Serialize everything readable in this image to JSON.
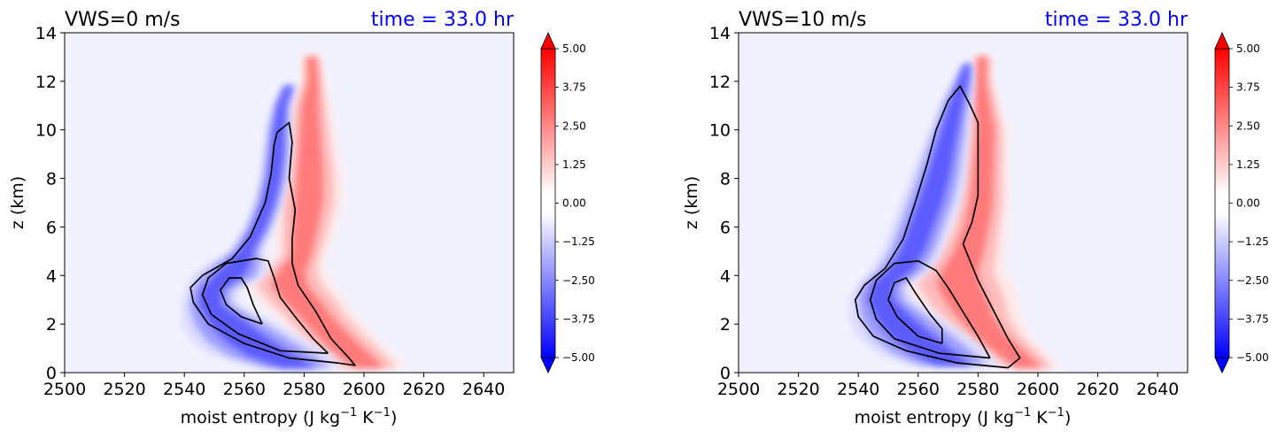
{
  "chart_data": [
    {
      "type": "heatmap",
      "title": "VWS=0 m/s",
      "time_label": "time = 33.0 hr",
      "xlabel": "moist entropy (J kg",
      "xlabel_sup1": "−1",
      "xlabel_mid": " K",
      "xlabel_sup2": "−1",
      "xlabel_end": ")",
      "ylabel": "z (km)",
      "xlim": [
        2500,
        2650
      ],
      "ylim": [
        0,
        14
      ],
      "xticks": [
        "2500",
        "2520",
        "2540",
        "2560",
        "2580",
        "2600",
        "2620",
        "2640"
      ],
      "yticks": [
        "0",
        "2",
        "4",
        "6",
        "8",
        "10",
        "12",
        "14"
      ],
      "colorbar": {
        "range": [
          -5.0,
          5.0
        ],
        "ticks": [
          "5.00",
          "3.75",
          "2.50",
          "1.25",
          "0.00",
          "−1.25",
          "−2.50",
          "−3.75",
          "−5.00"
        ],
        "cmap": "bwr"
      },
      "blue_band": [
        {
          "z": 0.2,
          "l": 2567,
          "r": 2590
        },
        {
          "z": 0.7,
          "l": 2553,
          "r": 2585
        },
        {
          "z": 1.3,
          "l": 2546,
          "r": 2577
        },
        {
          "z": 2.0,
          "l": 2542,
          "r": 2568
        },
        {
          "z": 2.8,
          "l": 2541,
          "r": 2556
        },
        {
          "z": 3.4,
          "l": 2542,
          "r": 2556
        },
        {
          "z": 4.0,
          "l": 2545,
          "r": 2565
        },
        {
          "z": 4.5,
          "l": 2550,
          "r": 2566
        },
        {
          "z": 5.0,
          "l": 2556,
          "r": 2565
        },
        {
          "z": 6.0,
          "l": 2561,
          "r": 2569
        },
        {
          "z": 7.0,
          "l": 2564,
          "r": 2572
        },
        {
          "z": 8.0,
          "l": 2566,
          "r": 2574
        },
        {
          "z": 9.0,
          "l": 2567,
          "r": 2575
        },
        {
          "z": 10.0,
          "l": 2568,
          "r": 2575
        },
        {
          "z": 11.0,
          "l": 2570,
          "r": 2575
        },
        {
          "z": 11.8,
          "l": 2573,
          "r": 2577
        }
      ],
      "red_band": [
        {
          "z": 0.2,
          "l": 2593,
          "r": 2611
        },
        {
          "z": 0.8,
          "l": 2586,
          "r": 2606
        },
        {
          "z": 1.5,
          "l": 2580,
          "r": 2600
        },
        {
          "z": 2.3,
          "l": 2574,
          "r": 2594
        },
        {
          "z": 3.0,
          "l": 2568,
          "r": 2590
        },
        {
          "z": 3.6,
          "l": 2564,
          "r": 2586
        },
        {
          "z": 4.2,
          "l": 2568,
          "r": 2584
        },
        {
          "z": 4.8,
          "l": 2573,
          "r": 2585
        },
        {
          "z": 6.0,
          "l": 2573,
          "r": 2588
        },
        {
          "z": 7.0,
          "l": 2573,
          "r": 2590
        },
        {
          "z": 8.0,
          "l": 2574,
          "r": 2590
        },
        {
          "z": 9.0,
          "l": 2575,
          "r": 2589
        },
        {
          "z": 10.0,
          "l": 2576,
          "r": 2588
        },
        {
          "z": 11.0,
          "l": 2577,
          "r": 2587
        },
        {
          "z": 12.0,
          "l": 2580,
          "r": 2586
        },
        {
          "z": 13.0,
          "l": 2580,
          "r": 2585
        }
      ],
      "contours": [
        [
          [
            2591,
            0.4
          ],
          [
            2575,
            0.6
          ],
          [
            2560,
            1.2
          ],
          [
            2548,
            2.0
          ],
          [
            2543,
            2.9
          ],
          [
            2542,
            3.5
          ],
          [
            2546,
            4.0
          ],
          [
            2556,
            4.7
          ],
          [
            2562,
            5.6
          ],
          [
            2567,
            7.0
          ],
          [
            2569,
            8.2
          ],
          [
            2570,
            9.4
          ],
          [
            2571,
            9.9
          ],
          [
            2575,
            10.3
          ],
          [
            2576,
            9.5
          ],
          [
            2575,
            8.0
          ],
          [
            2577,
            6.7
          ],
          [
            2576,
            5.5
          ],
          [
            2576,
            4.5
          ],
          [
            2578,
            3.6
          ],
          [
            2584,
            2.5
          ],
          [
            2589,
            1.4
          ],
          [
            2595,
            0.6
          ],
          [
            2597,
            0.3
          ],
          [
            2591,
            0.4
          ]
        ],
        [
          [
            2588,
            0.8
          ],
          [
            2572,
            0.9
          ],
          [
            2558,
            1.6
          ],
          [
            2549,
            2.4
          ],
          [
            2546,
            3.2
          ],
          [
            2548,
            3.9
          ],
          [
            2554,
            4.5
          ],
          [
            2564,
            4.7
          ],
          [
            2568,
            4.6
          ],
          [
            2570,
            3.9
          ],
          [
            2572,
            3.1
          ],
          [
            2577,
            2.3
          ],
          [
            2583,
            1.4
          ],
          [
            2588,
            0.8
          ]
        ],
        [
          [
            2566,
            2.0
          ],
          [
            2559,
            2.3
          ],
          [
            2554,
            2.8
          ],
          [
            2552,
            3.4
          ],
          [
            2555,
            3.9
          ],
          [
            2559,
            3.9
          ],
          [
            2561,
            3.5
          ],
          [
            2563,
            2.8
          ],
          [
            2566,
            2.0
          ]
        ]
      ]
    },
    {
      "type": "heatmap",
      "title": "VWS=10 m/s",
      "time_label": "time = 33.0 hr",
      "xlabel": "moist entropy (J kg",
      "xlabel_sup1": "−1",
      "xlabel_mid": " K",
      "xlabel_sup2": "−1",
      "xlabel_end": ")",
      "ylabel": "z (km)",
      "xlim": [
        2500,
        2650
      ],
      "ylim": [
        0,
        14
      ],
      "xticks": [
        "2500",
        "2520",
        "2540",
        "2560",
        "2580",
        "2600",
        "2620",
        "2640"
      ],
      "yticks": [
        "0",
        "2",
        "4",
        "6",
        "8",
        "10",
        "12",
        "14"
      ],
      "colorbar": {
        "range": [
          -5.0,
          5.0
        ],
        "ticks": [
          "5.00",
          "3.75",
          "2.50",
          "1.25",
          "0.00",
          "−1.25",
          "−2.50",
          "−3.75",
          "−5.00"
        ],
        "cmap": "bwr"
      },
      "blue_band": [
        {
          "z": 0.3,
          "l": 2560,
          "r": 2584
        },
        {
          "z": 0.8,
          "l": 2550,
          "r": 2580
        },
        {
          "z": 1.5,
          "l": 2543,
          "r": 2573
        },
        {
          "z": 2.2,
          "l": 2540,
          "r": 2565
        },
        {
          "z": 3.0,
          "l": 2539,
          "r": 2556
        },
        {
          "z": 3.6,
          "l": 2541,
          "r": 2555
        },
        {
          "z": 4.2,
          "l": 2546,
          "r": 2562
        },
        {
          "z": 5.0,
          "l": 2550,
          "r": 2566
        },
        {
          "z": 6.0,
          "l": 2553,
          "r": 2569
        },
        {
          "z": 7.0,
          "l": 2556,
          "r": 2572
        },
        {
          "z": 8.0,
          "l": 2559,
          "r": 2574
        },
        {
          "z": 9.0,
          "l": 2562,
          "r": 2575
        },
        {
          "z": 10.0,
          "l": 2565,
          "r": 2576
        },
        {
          "z": 11.0,
          "l": 2568,
          "r": 2577
        },
        {
          "z": 12.0,
          "l": 2572,
          "r": 2578
        },
        {
          "z": 12.7,
          "l": 2575,
          "r": 2578
        }
      ],
      "red_band": [
        {
          "z": 0.2,
          "l": 2590,
          "r": 2605
        },
        {
          "z": 0.8,
          "l": 2582,
          "r": 2600
        },
        {
          "z": 1.5,
          "l": 2575,
          "r": 2594
        },
        {
          "z": 2.3,
          "l": 2568,
          "r": 2590
        },
        {
          "z": 3.0,
          "l": 2563,
          "r": 2589
        },
        {
          "z": 3.6,
          "l": 2560,
          "r": 2587
        },
        {
          "z": 4.2,
          "l": 2563,
          "r": 2585
        },
        {
          "z": 5.0,
          "l": 2568,
          "r": 2586
        },
        {
          "z": 6.0,
          "l": 2572,
          "r": 2587
        },
        {
          "z": 7.0,
          "l": 2574,
          "r": 2588
        },
        {
          "z": 8.0,
          "l": 2575,
          "r": 2588
        },
        {
          "z": 9.0,
          "l": 2576,
          "r": 2588
        },
        {
          "z": 10.0,
          "l": 2577,
          "r": 2588
        },
        {
          "z": 11.0,
          "l": 2577,
          "r": 2586
        },
        {
          "z": 12.0,
          "l": 2578,
          "r": 2584
        },
        {
          "z": 13.0,
          "l": 2579,
          "r": 2584
        }
      ],
      "contours": [
        [
          [
            2590,
            0.2
          ],
          [
            2573,
            0.4
          ],
          [
            2556,
            0.9
          ],
          [
            2545,
            1.5
          ],
          [
            2540,
            2.3
          ],
          [
            2539,
            3.0
          ],
          [
            2542,
            3.6
          ],
          [
            2549,
            4.3
          ],
          [
            2555,
            5.5
          ],
          [
            2559,
            7.0
          ],
          [
            2563,
            8.6
          ],
          [
            2566,
            10.0
          ],
          [
            2570,
            11.2
          ],
          [
            2574,
            11.8
          ],
          [
            2577,
            11.1
          ],
          [
            2580,
            10.3
          ],
          [
            2580,
            8.6
          ],
          [
            2580,
            7.3
          ],
          [
            2578,
            6.2
          ],
          [
            2575,
            5.3
          ],
          [
            2580,
            3.8
          ],
          [
            2585,
            2.6
          ],
          [
            2590,
            1.4
          ],
          [
            2594,
            0.6
          ],
          [
            2590,
            0.2
          ]
        ],
        [
          [
            2584,
            0.6
          ],
          [
            2567,
            0.8
          ],
          [
            2552,
            1.4
          ],
          [
            2546,
            2.2
          ],
          [
            2544,
            3.0
          ],
          [
            2546,
            3.8
          ],
          [
            2552,
            4.5
          ],
          [
            2560,
            4.6
          ],
          [
            2566,
            4.2
          ],
          [
            2570,
            3.5
          ],
          [
            2575,
            2.5
          ],
          [
            2580,
            1.5
          ],
          [
            2584,
            0.6
          ]
        ],
        [
          [
            2568,
            1.2
          ],
          [
            2560,
            1.5
          ],
          [
            2553,
            2.3
          ],
          [
            2550,
            3.0
          ],
          [
            2552,
            3.7
          ],
          [
            2556,
            3.9
          ],
          [
            2559,
            3.3
          ],
          [
            2564,
            2.4
          ],
          [
            2568,
            1.8
          ],
          [
            2568,
            1.2
          ]
        ]
      ]
    }
  ]
}
